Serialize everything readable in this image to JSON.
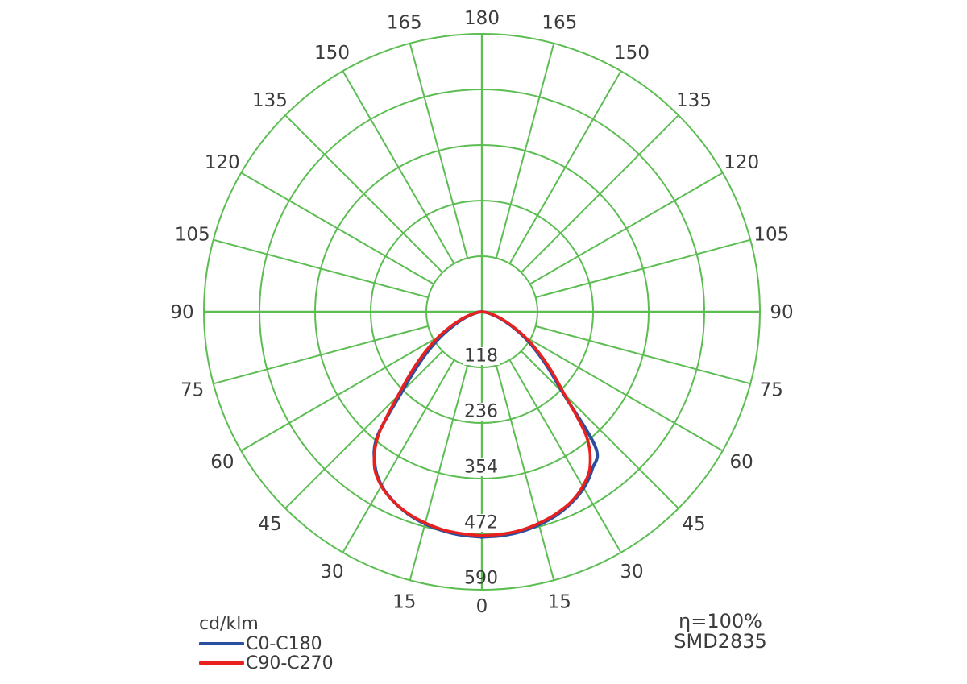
{
  "legend": {
    "units": "cd/klm",
    "items": [
      {
        "label": "C0-C180",
        "color": "#2b4fa0"
      },
      {
        "label": "C90-C270",
        "color": "#e9211e"
      }
    ]
  },
  "colors": {
    "grid": "#5cbd52",
    "text": "#3c3c3c",
    "background": "#ffffff",
    "curve_c0_c180": "#2b4fa0",
    "curve_c90_c270": "#e9211e"
  },
  "chart_data": {
    "type": "polar_photometric",
    "units_label": "cd/klm",
    "radial_ticks": [
      118,
      236,
      354,
      472,
      590
    ],
    "angle_ticks_deg": [
      0,
      15,
      30,
      45,
      60,
      75,
      90,
      105,
      120,
      135,
      150,
      165,
      180
    ],
    "angles_deg": [
      0,
      5,
      10,
      15,
      20,
      25,
      30,
      35,
      40,
      45,
      50,
      55,
      60,
      65,
      70,
      75,
      80,
      85,
      90
    ],
    "series": [
      {
        "name": "C0-C180",
        "color": "#2b4fa0",
        "right_C0": [
          478,
          477,
          474,
          468,
          460,
          448,
          432,
          408,
          375,
          243,
          182,
          136,
          99,
          66,
          42,
          23,
          12,
          5,
          0
        ],
        "left_C180": [
          478,
          476,
          472,
          466,
          457,
          444,
          426,
          396,
          345,
          240,
          178,
          132,
          94,
          62,
          40,
          22,
          11,
          4,
          0
        ]
      },
      {
        "name": "C90-C270",
        "color": "#e9211e",
        "right_C90": [
          475,
          474,
          471,
          465,
          457,
          446,
          428,
          400,
          345,
          248,
          190,
          143,
          104,
          70,
          45,
          26,
          13,
          5,
          1
        ],
        "left_C270": [
          475,
          473,
          470,
          464,
          456,
          444,
          427,
          398,
          342,
          252,
          192,
          145,
          106,
          72,
          47,
          27,
          13,
          5,
          1
        ]
      }
    ],
    "annotations": {
      "efficiency": "η=100%",
      "led_type": "SMD2835"
    }
  }
}
